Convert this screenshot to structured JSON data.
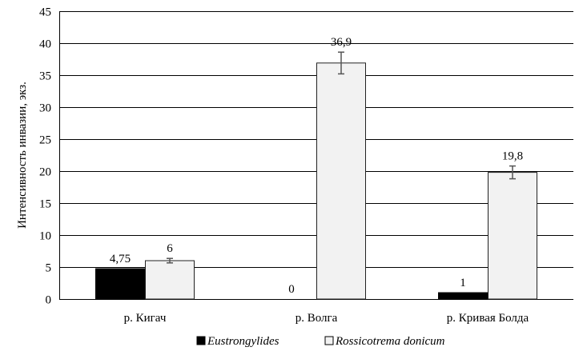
{
  "chart_data": {
    "type": "bar",
    "ylabel": "Интенсивность инвазии, экз.",
    "xlabel": "",
    "ylim": [
      0,
      45
    ],
    "yticks": [
      "0",
      "5",
      "10",
      "15",
      "20",
      "25",
      "30",
      "35",
      "40",
      "45"
    ],
    "categories": [
      "р. Кигач",
      "р. Волга",
      "р. Кривая Болда"
    ],
    "series": [
      {
        "name": "Eustrongylides",
        "color": "#000000",
        "values": [
          4.75,
          0,
          1
        ],
        "labels": [
          "4,75",
          "0",
          "1"
        ],
        "errors": [
          0,
          0,
          0
        ]
      },
      {
        "name": "Rossicotrema donicum",
        "color": "#f2f2f2",
        "values": [
          6,
          36.9,
          19.8
        ],
        "labels": [
          "6",
          "36,9",
          "19,8"
        ],
        "errors": [
          0.35,
          1.7,
          1.0
        ]
      }
    ],
    "grid": true,
    "legend": "bottom"
  }
}
